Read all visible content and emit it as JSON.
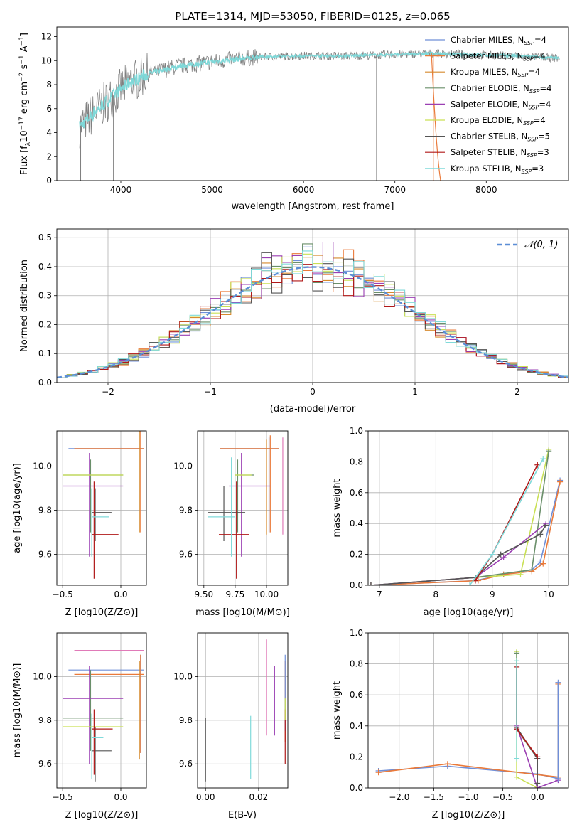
{
  "figure": {
    "title": "PLATE=1314, MJD=53050, FIBERID=0125, z=0.065"
  },
  "colors": {
    "Chabrier MILES": "#6f8fd8",
    "Salpeter MILES": "#ea7a3a",
    "Kroupa MILES": "#d68a2e",
    "Chabrier ELODIE": "#6a8f6a",
    "Salpeter ELODIE": "#9b3fb3",
    "Kroupa ELODIE": "#c9e055",
    "Chabrier STELIB": "#555555",
    "Salpeter STELIB": "#b01818",
    "Kroupa STELIB": "#80dada",
    "extra": "#e07ab8",
    "model_line": "#7fd8d8",
    "data_line": "#808080",
    "gaussian": "#5b8ed6"
  },
  "chart_data": [
    {
      "type": "line",
      "id": "spectrum",
      "xlabel_main": "wavelength [Angstrom, rest frame]",
      "ylabel_main": "Flux [f",
      "ylabel_sub": "λ",
      "ylabel_rest": "10",
      "ylabel_exp1": "−17",
      "ylabel_rest2": " erg cm",
      "ylabel_exp2": "−2",
      "ylabel_rest3": " s",
      "ylabel_exp3": "−1",
      "ylabel_rest4": " A",
      "ylabel_exp4": "−1",
      "ylabel_end": "]",
      "xlim": [
        3300,
        8900
      ],
      "ylim": [
        0,
        12.8
      ],
      "xticks": [
        4000,
        5000,
        6000,
        7000,
        8000
      ],
      "yticks": [
        0,
        2,
        4,
        6,
        8,
        10,
        12
      ],
      "continuum": [
        [
          3550,
          4.5
        ],
        [
          3700,
          5.6
        ],
        [
          3800,
          6.3
        ],
        [
          3950,
          7.3
        ],
        [
          4100,
          8.2
        ],
        [
          4300,
          8.9
        ],
        [
          4600,
          9.5
        ],
        [
          5000,
          9.9
        ],
        [
          5500,
          10.3
        ],
        [
          6000,
          10.4
        ],
        [
          6500,
          10.4
        ],
        [
          7000,
          10.5
        ],
        [
          7400,
          10.6
        ],
        [
          7800,
          10.5
        ],
        [
          8300,
          10.4
        ],
        [
          8800,
          10.2
        ]
      ],
      "legend": [
        {
          "name": "Chabrier MILES, N",
          "sub": "SSP",
          "tail": "=4"
        },
        {
          "name": "Salpeter MILES, N",
          "sub": "SSP",
          "tail": "=4"
        },
        {
          "name": "Kroupa MILES, N",
          "sub": "SSP",
          "tail": "=4"
        },
        {
          "name": "Chabrier ELODIE, N",
          "sub": "SSP",
          "tail": "=4"
        },
        {
          "name": "Salpeter ELODIE, N",
          "sub": "SSP",
          "tail": "=4"
        },
        {
          "name": "Kroupa ELODIE, N",
          "sub": "SSP",
          "tail": "=4"
        },
        {
          "name": "Chabrier STELIB, N",
          "sub": "SSP",
          "tail": "=5"
        },
        {
          "name": "Salpeter STELIB, N",
          "sub": "SSP",
          "tail": "=3"
        },
        {
          "name": "Kroupa STELIB, N",
          "sub": "SSP",
          "tail": "=3"
        }
      ]
    },
    {
      "type": "bar",
      "id": "residuals",
      "xlabel": "(data-model)/error",
      "ylabel": "Normed distribution",
      "xlim": [
        -2.5,
        2.5
      ],
      "ylim": [
        0,
        0.53
      ],
      "xticks": [
        -2,
        -1,
        0,
        1,
        2
      ],
      "yticks": [
        0.0,
        0.1,
        0.2,
        0.3,
        0.4,
        0.5
      ],
      "legend": "N(0,1)",
      "legend_label": "𝒩(0, 1)",
      "bin_width": 0.1
    },
    {
      "type": "scatter",
      "id": "age_vs_Z",
      "xlabel": "Z [log10(Z/Z⊙)]",
      "ylabel": "age [log10(age/yr)]",
      "xlim": [
        -0.55,
        0.22
      ],
      "ylim": [
        9.46,
        10.16
      ],
      "xticks": [
        -0.5,
        0.0
      ],
      "yticks": [
        9.6,
        9.8,
        10.0
      ],
      "points": [
        {
          "s": "Chabrier MILES",
          "x": 0.0,
          "xe": [
            -0.45,
            0.2
          ],
          "y": 10.08,
          "ye": [
            10.08,
            10.08
          ]
        },
        {
          "s": "Salpeter MILES",
          "x": 0.17,
          "xe": [
            -0.4,
            0.2
          ],
          "y": 10.08,
          "ye": [
            9.7,
            10.16
          ]
        },
        {
          "s": "Kroupa MILES",
          "x": 0.16,
          "xe": [
            0.16,
            0.16
          ],
          "y": 9.9,
          "ye": [
            9.7,
            10.16
          ]
        },
        {
          "s": "Chabrier ELODIE",
          "x": -0.26,
          "xe": [
            -0.5,
            0.02
          ],
          "y": 9.96,
          "ye": [
            9.7,
            10.03
          ]
        },
        {
          "s": "Salpeter ELODIE",
          "x": -0.27,
          "xe": [
            -0.5,
            0.02
          ],
          "y": 9.91,
          "ye": [
            9.59,
            10.06
          ]
        },
        {
          "s": "Kroupa ELODIE",
          "x": -0.3,
          "xe": [
            -0.5,
            0.02
          ],
          "y": 9.96,
          "ye": [
            9.96,
            9.96
          ]
        },
        {
          "s": "Chabrier STELIB",
          "x": -0.22,
          "xe": [
            -0.25,
            -0.08
          ],
          "y": 9.79,
          "ye": [
            9.66,
            9.9
          ]
        },
        {
          "s": "Salpeter STELIB",
          "x": -0.23,
          "xe": [
            -0.25,
            -0.02
          ],
          "y": 9.69,
          "ye": [
            9.49,
            9.93
          ]
        },
        {
          "s": "Kroupa STELIB",
          "x": -0.25,
          "xe": [
            -0.25,
            -0.1
          ],
          "y": 9.77,
          "ye": [
            9.59,
            9.9
          ]
        }
      ]
    },
    {
      "type": "scatter",
      "id": "age_vs_mass",
      "xlabel": "mass [log10(M/M⊙)]",
      "ylabel": "",
      "xlim": [
        9.45,
        10.17
      ],
      "ylim": [
        9.46,
        10.16
      ],
      "xticks": [
        9.5,
        9.75,
        10.0
      ],
      "yticks": [
        9.6,
        9.8,
        10.0
      ],
      "points": [
        {
          "s": "Chabrier MILES",
          "x": 10.02,
          "xe": [
            9.63,
            10.1
          ],
          "y": 10.08,
          "ye": [
            9.7,
            10.13
          ]
        },
        {
          "s": "Salpeter MILES",
          "x": 10.03,
          "xe": [
            9.63,
            10.1
          ],
          "y": 10.08,
          "ye": [
            9.7,
            10.14
          ]
        },
        {
          "s": "Kroupa MILES",
          "x": 10.0,
          "xe": [
            10.0,
            10.0
          ],
          "y": 9.9,
          "ye": [
            9.69,
            10.12
          ]
        },
        {
          "s": "Chabrier ELODIE",
          "x": 9.77,
          "xe": [
            9.75,
            9.9
          ],
          "y": 9.96,
          "ye": [
            9.7,
            10.03
          ]
        },
        {
          "s": "Salpeter ELODIE",
          "x": 9.8,
          "xe": [
            9.7,
            10.03
          ],
          "y": 9.91,
          "ye": [
            9.59,
            10.06
          ]
        },
        {
          "s": "Kroupa ELODIE",
          "x": 9.77,
          "xe": [
            9.75,
            9.88
          ],
          "y": 9.96,
          "ye": [
            9.96,
            9.96
          ]
        },
        {
          "s": "Chabrier STELIB",
          "x": 9.66,
          "xe": [
            9.53,
            9.83
          ],
          "y": 9.79,
          "ye": [
            9.66,
            9.91
          ]
        },
        {
          "s": "Salpeter STELIB",
          "x": 9.76,
          "xe": [
            9.62,
            9.86
          ],
          "y": 9.69,
          "ye": [
            9.49,
            9.93
          ]
        },
        {
          "s": "Kroupa STELIB",
          "x": 9.72,
          "xe": [
            9.53,
            9.75
          ],
          "y": 9.77,
          "ye": [
            9.59,
            10.04
          ]
        },
        {
          "s": "extra",
          "x": 10.13,
          "xe": [
            10.13,
            10.13
          ],
          "y": 9.88,
          "ye": [
            9.69,
            10.13
          ]
        }
      ]
    },
    {
      "type": "line",
      "id": "massweight_vs_age",
      "xlabel": "age [log10(age/yr)]",
      "ylabel": "mass weight",
      "xlim": [
        6.8,
        10.35
      ],
      "ylim": [
        0,
        1.0
      ],
      "xticks": [
        7,
        8,
        9,
        10
      ],
      "yticks": [
        0.0,
        0.2,
        0.4,
        0.6,
        0.8,
        1.0
      ],
      "series": [
        {
          "s": "Chabrier MILES",
          "x": [
            6.85,
            8.7,
            9.2,
            9.7,
            9.85,
            10.2
          ],
          "y": [
            0.0,
            0.03,
            0.07,
            0.1,
            0.15,
            0.68
          ]
        },
        {
          "s": "Salpeter MILES",
          "x": [
            6.85,
            8.75,
            9.2,
            9.7,
            9.9,
            10.2
          ],
          "y": [
            0.0,
            0.03,
            0.07,
            0.09,
            0.14,
            0.67
          ]
        },
        {
          "s": "Kroupa ELODIE",
          "x": [
            6.85,
            8.7,
            9.5,
            10.0
          ],
          "y": [
            0.0,
            0.05,
            0.07,
            0.88
          ]
        },
        {
          "s": "Chabrier ELODIE",
          "x": [
            6.85,
            8.7,
            9.7,
            10.0
          ],
          "y": [
            0.0,
            0.05,
            0.1,
            0.87
          ]
        },
        {
          "s": "Salpeter ELODIE",
          "x": [
            6.85,
            8.7,
            9.2,
            9.95
          ],
          "y": [
            0.0,
            0.05,
            0.18,
            0.4
          ]
        },
        {
          "s": "Chabrier STELIB",
          "x": [
            6.85,
            8.7,
            9.15,
            9.85,
            9.95
          ],
          "y": [
            0.0,
            0.05,
            0.2,
            0.33,
            0.39
          ]
        },
        {
          "s": "Salpeter STELIB",
          "x": [
            8.7,
            9.0,
            9.8
          ],
          "y": [
            0.03,
            0.2,
            0.78
          ]
        },
        {
          "s": "Kroupa STELIB",
          "x": [
            8.6,
            9.0,
            9.9
          ],
          "y": [
            0.0,
            0.2,
            0.82
          ]
        }
      ]
    },
    {
      "type": "scatter",
      "id": "mass_vs_Z",
      "xlabel": "Z [log10(Z/Z⊙)]",
      "ylabel": "mass [log10(M/M⊙)]",
      "xlim": [
        -0.55,
        0.22
      ],
      "ylim": [
        9.49,
        10.2
      ],
      "xticks": [
        -0.5,
        0.0
      ],
      "yticks": [
        9.6,
        9.8,
        10.0
      ],
      "points": [
        {
          "s": "Chabrier MILES",
          "x": 0.17,
          "xe": [
            -0.45,
            0.2
          ],
          "y": 10.03,
          "ye": [
            9.65,
            10.1
          ]
        },
        {
          "s": "Salpeter MILES",
          "x": 0.17,
          "xe": [
            -0.4,
            0.2
          ],
          "y": 10.01,
          "ye": [
            9.65,
            10.1
          ]
        },
        {
          "s": "Kroupa MILES",
          "x": 0.16,
          "xe": [
            0.16,
            0.16
          ],
          "y": 9.9,
          "ye": [
            9.62,
            10.07
          ]
        },
        {
          "s": "Chabrier ELODIE",
          "x": -0.26,
          "xe": [
            -0.5,
            0.02
          ],
          "y": 9.81,
          "ye": [
            9.66,
            10.03
          ]
        },
        {
          "s": "Salpeter ELODIE",
          "x": -0.27,
          "xe": [
            -0.5,
            0.02
          ],
          "y": 9.9,
          "ye": [
            9.6,
            10.05
          ]
        },
        {
          "s": "Kroupa ELODIE",
          "x": -0.3,
          "xe": [
            -0.5,
            0.02
          ],
          "y": 9.77,
          "ye": [
            9.77,
            9.77
          ]
        },
        {
          "s": "Chabrier STELIB",
          "x": -0.22,
          "xe": [
            -0.25,
            -0.08
          ],
          "y": 9.66,
          "ye": [
            9.52,
            9.77
          ]
        },
        {
          "s": "Salpeter STELIB",
          "x": -0.23,
          "xe": [
            -0.25,
            -0.07
          ],
          "y": 9.76,
          "ye": [
            9.55,
            9.85
          ]
        },
        {
          "s": "Kroupa STELIB",
          "x": -0.25,
          "xe": [
            -0.25,
            -0.15
          ],
          "y": 9.72,
          "ye": [
            9.53,
            9.83
          ]
        },
        {
          "s": "extra",
          "x": 0.17,
          "xe": [
            -0.4,
            0.2
          ],
          "y": 10.12,
          "ye": [
            10.12,
            10.12
          ]
        }
      ]
    },
    {
      "type": "scatter",
      "id": "mass_vs_ebv",
      "xlabel": "E(B-V)",
      "ylabel": "",
      "xlim": [
        -0.003,
        0.031
      ],
      "ylim": [
        9.49,
        10.2
      ],
      "xticks": [
        0.0,
        0.02
      ],
      "yticks": [
        9.6,
        9.8,
        10.0
      ],
      "points": [
        {
          "s": "Chabrier STELIB",
          "x": 0.0,
          "ye": [
            9.52,
            9.81
          ]
        },
        {
          "s": "Kroupa STELIB",
          "x": 0.017,
          "ye": [
            9.53,
            9.82
          ]
        },
        {
          "s": "extra",
          "x": 0.023,
          "ye": [
            9.73,
            10.17
          ]
        },
        {
          "s": "Salpeter ELODIE",
          "x": 0.026,
          "ye": [
            9.73,
            10.05
          ]
        },
        {
          "s": "Salpeter MILES",
          "x": 0.03,
          "ye": [
            9.7,
            10.07
          ]
        },
        {
          "s": "Chabrier MILES",
          "x": 0.03,
          "ye": [
            9.75,
            10.1
          ]
        },
        {
          "s": "Salpeter STELIB",
          "x": 0.03,
          "ye": [
            9.6,
            9.85
          ]
        },
        {
          "s": "Kroupa ELODIE",
          "x": 0.03,
          "ye": [
            9.8,
            9.9
          ]
        }
      ]
    },
    {
      "type": "line",
      "id": "massweight_vs_Z",
      "xlabel": "Z [log10(Z/Z⊙)]",
      "ylabel": "mass weight",
      "xlim": [
        -2.45,
        0.45
      ],
      "ylim": [
        0,
        1.0
      ],
      "xticks": [
        -2.0,
        -1.5,
        -1.0,
        -0.5,
        0.0
      ],
      "yticks": [
        0.0,
        0.2,
        0.4,
        0.6,
        0.8,
        1.0
      ],
      "series": [
        {
          "s": "Chabrier MILES",
          "x": [
            -2.3,
            -1.3,
            0.0,
            0.3
          ],
          "y": [
            0.11,
            0.14,
            0.09,
            0.06
          ]
        },
        {
          "s": "Salpeter MILES",
          "x": [
            -2.3,
            -1.3,
            0.3,
            0.3
          ],
          "y": [
            0.1,
            0.155,
            0.07,
            0.67
          ]
        },
        {
          "s": "Kroupa ELODIE",
          "x": [
            -0.3,
            -0.3,
            0.0
          ],
          "y": [
            0.88,
            0.07,
            0.0
          ]
        },
        {
          "s": "Chabrier ELODIE",
          "x": [
            -0.3,
            -0.3,
            0.0
          ],
          "y": [
            0.87,
            0.38,
            0.19
          ]
        },
        {
          "s": "Salpeter ELODIE",
          "x": [
            -0.3,
            -0.3,
            0.0,
            0.3
          ],
          "y": [
            0.38,
            0.4,
            0.0,
            0.05
          ]
        },
        {
          "s": "Chabrier STELIB",
          "x": [
            -0.3,
            -0.3,
            0.0,
            0.0
          ],
          "y": [
            0.78,
            0.39,
            0.19,
            0.03
          ]
        },
        {
          "s": "Salpeter STELIB",
          "x": [
            -0.3,
            -0.3,
            0.0
          ],
          "y": [
            0.78,
            0.38,
            0.2
          ]
        },
        {
          "s": "Kroupa STELIB",
          "x": [
            -0.3,
            -0.3
          ],
          "y": [
            0.82,
            0.19
          ]
        },
        {
          "s": "Chabrier MILES",
          "x": [
            0.3,
            0.3
          ],
          "y": [
            0.68,
            0.06
          ]
        }
      ]
    }
  ]
}
